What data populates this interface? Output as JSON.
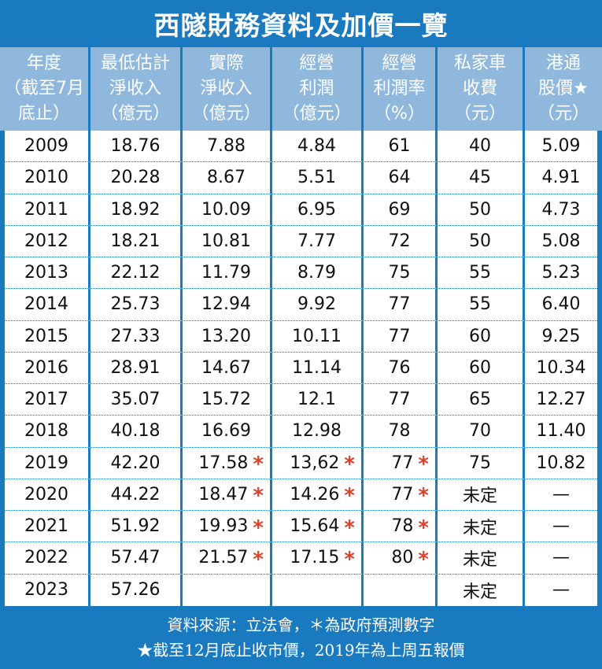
{
  "title": "西隧財務資料及加價一覽",
  "headers": [
    [
      "年度",
      "（截至7月",
      "底止）"
    ],
    [
      "最低估計",
      "淨收入",
      "（億元）"
    ],
    [
      "實際",
      "淨收入",
      "（億元）"
    ],
    [
      "經營",
      "利潤",
      "（億元）"
    ],
    [
      "經營",
      "利潤率",
      "（%）"
    ],
    [
      "私家車",
      "收費",
      "（元）"
    ],
    [
      "港通",
      "股價★",
      "（元）"
    ]
  ],
  "rows": [
    {
      "c": [
        "2009",
        "18.76",
        "7.88",
        "4.84",
        "61",
        "40",
        "5.09"
      ],
      "s": [
        false,
        false,
        false,
        false,
        false,
        false,
        false
      ]
    },
    {
      "c": [
        "2010",
        "20.28",
        "8.67",
        "5.51",
        "64",
        "45",
        "4.91"
      ],
      "s": [
        false,
        false,
        false,
        false,
        false,
        false,
        false
      ]
    },
    {
      "c": [
        "2011",
        "18.92",
        "10.09",
        "6.95",
        "69",
        "50",
        "4.73"
      ],
      "s": [
        false,
        false,
        false,
        false,
        false,
        false,
        false
      ]
    },
    {
      "c": [
        "2012",
        "18.21",
        "10.81",
        "7.77",
        "72",
        "50",
        "5.08"
      ],
      "s": [
        false,
        false,
        false,
        false,
        false,
        false,
        false
      ]
    },
    {
      "c": [
        "2013",
        "22.12",
        "11.79",
        "8.79",
        "75",
        "55",
        "5.23"
      ],
      "s": [
        false,
        false,
        false,
        false,
        false,
        false,
        false
      ]
    },
    {
      "c": [
        "2014",
        "25.73",
        "12.94",
        "9.92",
        "77",
        "55",
        "6.40"
      ],
      "s": [
        false,
        false,
        false,
        false,
        false,
        false,
        false
      ]
    },
    {
      "c": [
        "2015",
        "27.33",
        "13.20",
        "10.11",
        "77",
        "60",
        "9.25"
      ],
      "s": [
        false,
        false,
        false,
        false,
        false,
        false,
        false
      ]
    },
    {
      "c": [
        "2016",
        "28.91",
        "14.67",
        "11.14",
        "76",
        "60",
        "10.34"
      ],
      "s": [
        false,
        false,
        false,
        false,
        false,
        false,
        false
      ]
    },
    {
      "c": [
        "2017",
        "35.07",
        "15.72",
        "12.1",
        "77",
        "65",
        "12.27"
      ],
      "s": [
        false,
        false,
        false,
        false,
        false,
        false,
        false
      ]
    },
    {
      "c": [
        "2018",
        "40.18",
        "16.69",
        "12.98",
        "78",
        "70",
        "11.40"
      ],
      "s": [
        false,
        false,
        false,
        false,
        false,
        false,
        false
      ]
    },
    {
      "c": [
        "2019",
        "42.20",
        "17.58",
        "13,62",
        "77",
        "75",
        "10.82"
      ],
      "s": [
        false,
        false,
        true,
        true,
        true,
        false,
        false
      ]
    },
    {
      "c": [
        "2020",
        "44.22",
        "18.47",
        "14.26",
        "77",
        "未定",
        "—"
      ],
      "s": [
        false,
        false,
        true,
        true,
        true,
        false,
        false
      ]
    },
    {
      "c": [
        "2021",
        "51.92",
        "19.93",
        "15.64",
        "78",
        "未定",
        "—"
      ],
      "s": [
        false,
        false,
        true,
        true,
        true,
        false,
        false
      ]
    },
    {
      "c": [
        "2022",
        "57.47",
        "21.57",
        "17.15",
        "80",
        "未定",
        "—"
      ],
      "s": [
        false,
        false,
        true,
        true,
        true,
        false,
        false
      ]
    },
    {
      "c": [
        "2023",
        "57.26",
        "",
        "",
        "",
        "未定",
        "—"
      ],
      "s": [
        false,
        false,
        false,
        false,
        false,
        false,
        false
      ]
    }
  ],
  "star_symbol": "*",
  "footer": {
    "line1": "資料來源：立法會，＊為政府預測數字",
    "line2": "★截至12月底止收市價，2019年為上周五報價"
  },
  "colors": {
    "frame": "#1a7ac0",
    "header_bg": "#8fb8dc",
    "star": "#e0402a"
  }
}
